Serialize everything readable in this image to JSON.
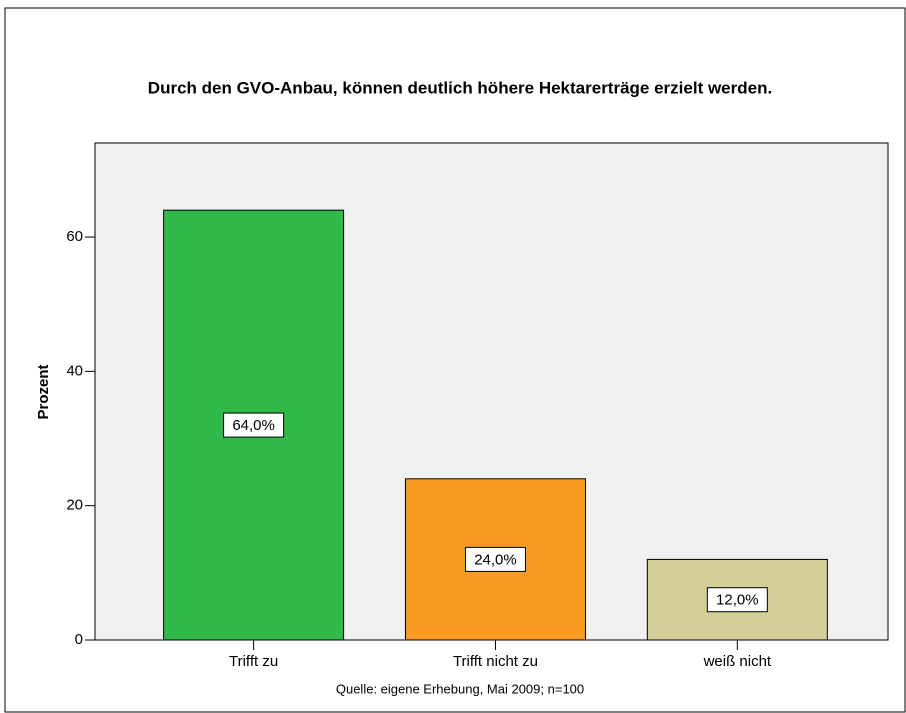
{
  "chart_data": {
    "type": "bar",
    "title": "Durch den GVO-Anbau, können deutlich höhere Hektarerträge erzielt werden.",
    "y_label": "Prozent",
    "source": "Quelle: eigene Erhebung, Mai 2009; n=100",
    "categories": [
      "Trifft zu",
      "Trifft nicht zu",
      "weiß nicht"
    ],
    "values": [
      64,
      24,
      12
    ],
    "value_labels": [
      "64,0%",
      "24,0%",
      "12,0%"
    ],
    "colors": [
      "#30b84a",
      "#f99b21",
      "#d4cf98"
    ],
    "ylim": [
      0,
      74
    ],
    "yticks": [
      0,
      20,
      40,
      60
    ],
    "grid": false
  }
}
